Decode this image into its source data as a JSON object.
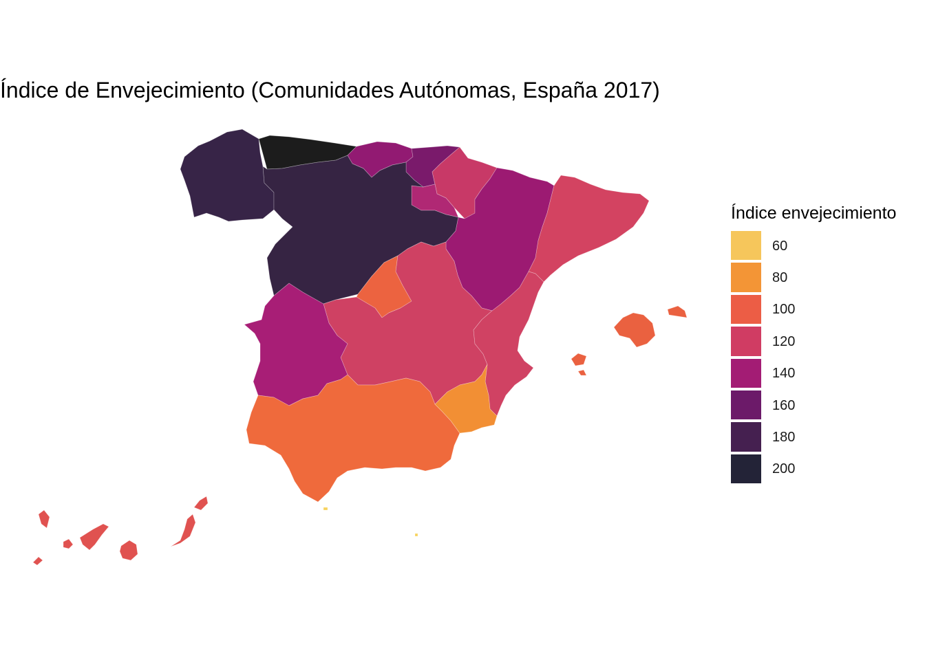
{
  "title": "Índice de Envejecimiento (Comunidades Autónomas, España  2017)",
  "legend": {
    "title": "Índice envejecimiento",
    "items": [
      {
        "label": "60",
        "color": "#f6c65b"
      },
      {
        "label": "80",
        "color": "#f39536"
      },
      {
        "label": "100",
        "color": "#ec5d45"
      },
      {
        "label": "120",
        "color": "#d03c63"
      },
      {
        "label": "140",
        "color": "#a31c74"
      },
      {
        "label": "160",
        "color": "#6c1a69"
      },
      {
        "label": "180",
        "color": "#452050"
      },
      {
        "label": "200",
        "color": "#232337"
      }
    ]
  },
  "regions": [
    {
      "name": "Galicia",
      "color": "#372447"
    },
    {
      "name": "Asturias",
      "color": "#1c1c1c"
    },
    {
      "name": "Cantabria",
      "color": "#921a72"
    },
    {
      "name": "País Vasco",
      "color": "#7a1a6b"
    },
    {
      "name": "Navarra",
      "color": "#c83967"
    },
    {
      "name": "La Rioja",
      "color": "#b02874"
    },
    {
      "name": "Castilla y León",
      "color": "#362443"
    },
    {
      "name": "Aragón",
      "color": "#9c1a72"
    },
    {
      "name": "Cataluña",
      "color": "#d34361"
    },
    {
      "name": "Madrid",
      "color": "#ec6340"
    },
    {
      "name": "Castilla-La Mancha",
      "color": "#cf4163"
    },
    {
      "name": "Comunitat Valenciana",
      "color": "#d04263"
    },
    {
      "name": "Extremadura",
      "color": "#a81e76"
    },
    {
      "name": "Andalucía",
      "color": "#ef6a3c"
    },
    {
      "name": "Región de Murcia",
      "color": "#f28f34"
    },
    {
      "name": "Illes Balears",
      "color": "#ea6140"
    },
    {
      "name": "Canarias",
      "color": "#e05250"
    },
    {
      "name": "Ceuta",
      "color": "#f7d35e"
    },
    {
      "name": "Melilla",
      "color": "#f7d35e"
    }
  ]
}
